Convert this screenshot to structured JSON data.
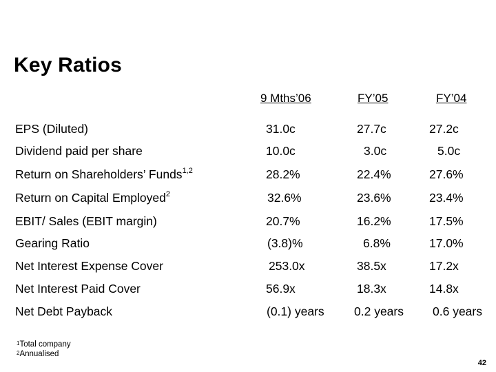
{
  "title": "Key Ratios",
  "columns": [
    "9 Mths’06",
    "FY’05",
    "FY’04"
  ],
  "rows": [
    {
      "label": "EPS (Diluted)",
      "sup": "",
      "values": [
        "31.0c",
        "27.7c",
        "27.2c"
      ]
    },
    {
      "label": "Dividend paid per share",
      "sup": "",
      "values": [
        "10.0c",
        "3.0c",
        "5.0c"
      ]
    },
    {
      "label": "Return on Shareholders’ Funds",
      "sup": "1,2",
      "values": [
        "28.2%",
        "22.4%",
        "27.6%"
      ]
    },
    {
      "label": "Return on Capital Employed",
      "sup": "2",
      "values": [
        "32.6%",
        "23.6%",
        "23.4%"
      ]
    },
    {
      "label": "EBIT/ Sales (EBIT margin)",
      "sup": "",
      "values": [
        "20.7%",
        "16.2%",
        "17.5%"
      ]
    },
    {
      "label": "Gearing Ratio",
      "sup": "",
      "values": [
        "(3.8)%",
        "6.8%",
        "17.0%"
      ]
    },
    {
      "label": "Net Interest Expense Cover",
      "sup": "",
      "values": [
        "253.0x",
        "38.5x",
        "17.2x"
      ]
    },
    {
      "label": "Net Interest Paid Cover",
      "sup": "",
      "values": [
        "56.9x",
        "18.3x",
        "14.8x"
      ]
    },
    {
      "label": "Net Debt Payback",
      "sup": "",
      "values": [
        "(0.1) years",
        "0.2 years",
        "0.6 years"
      ]
    }
  ],
  "footnotes": [
    {
      "num": "1",
      "text": "Total company"
    },
    {
      "num": "2",
      "text": "Annualised"
    }
  ],
  "page_number": "42"
}
